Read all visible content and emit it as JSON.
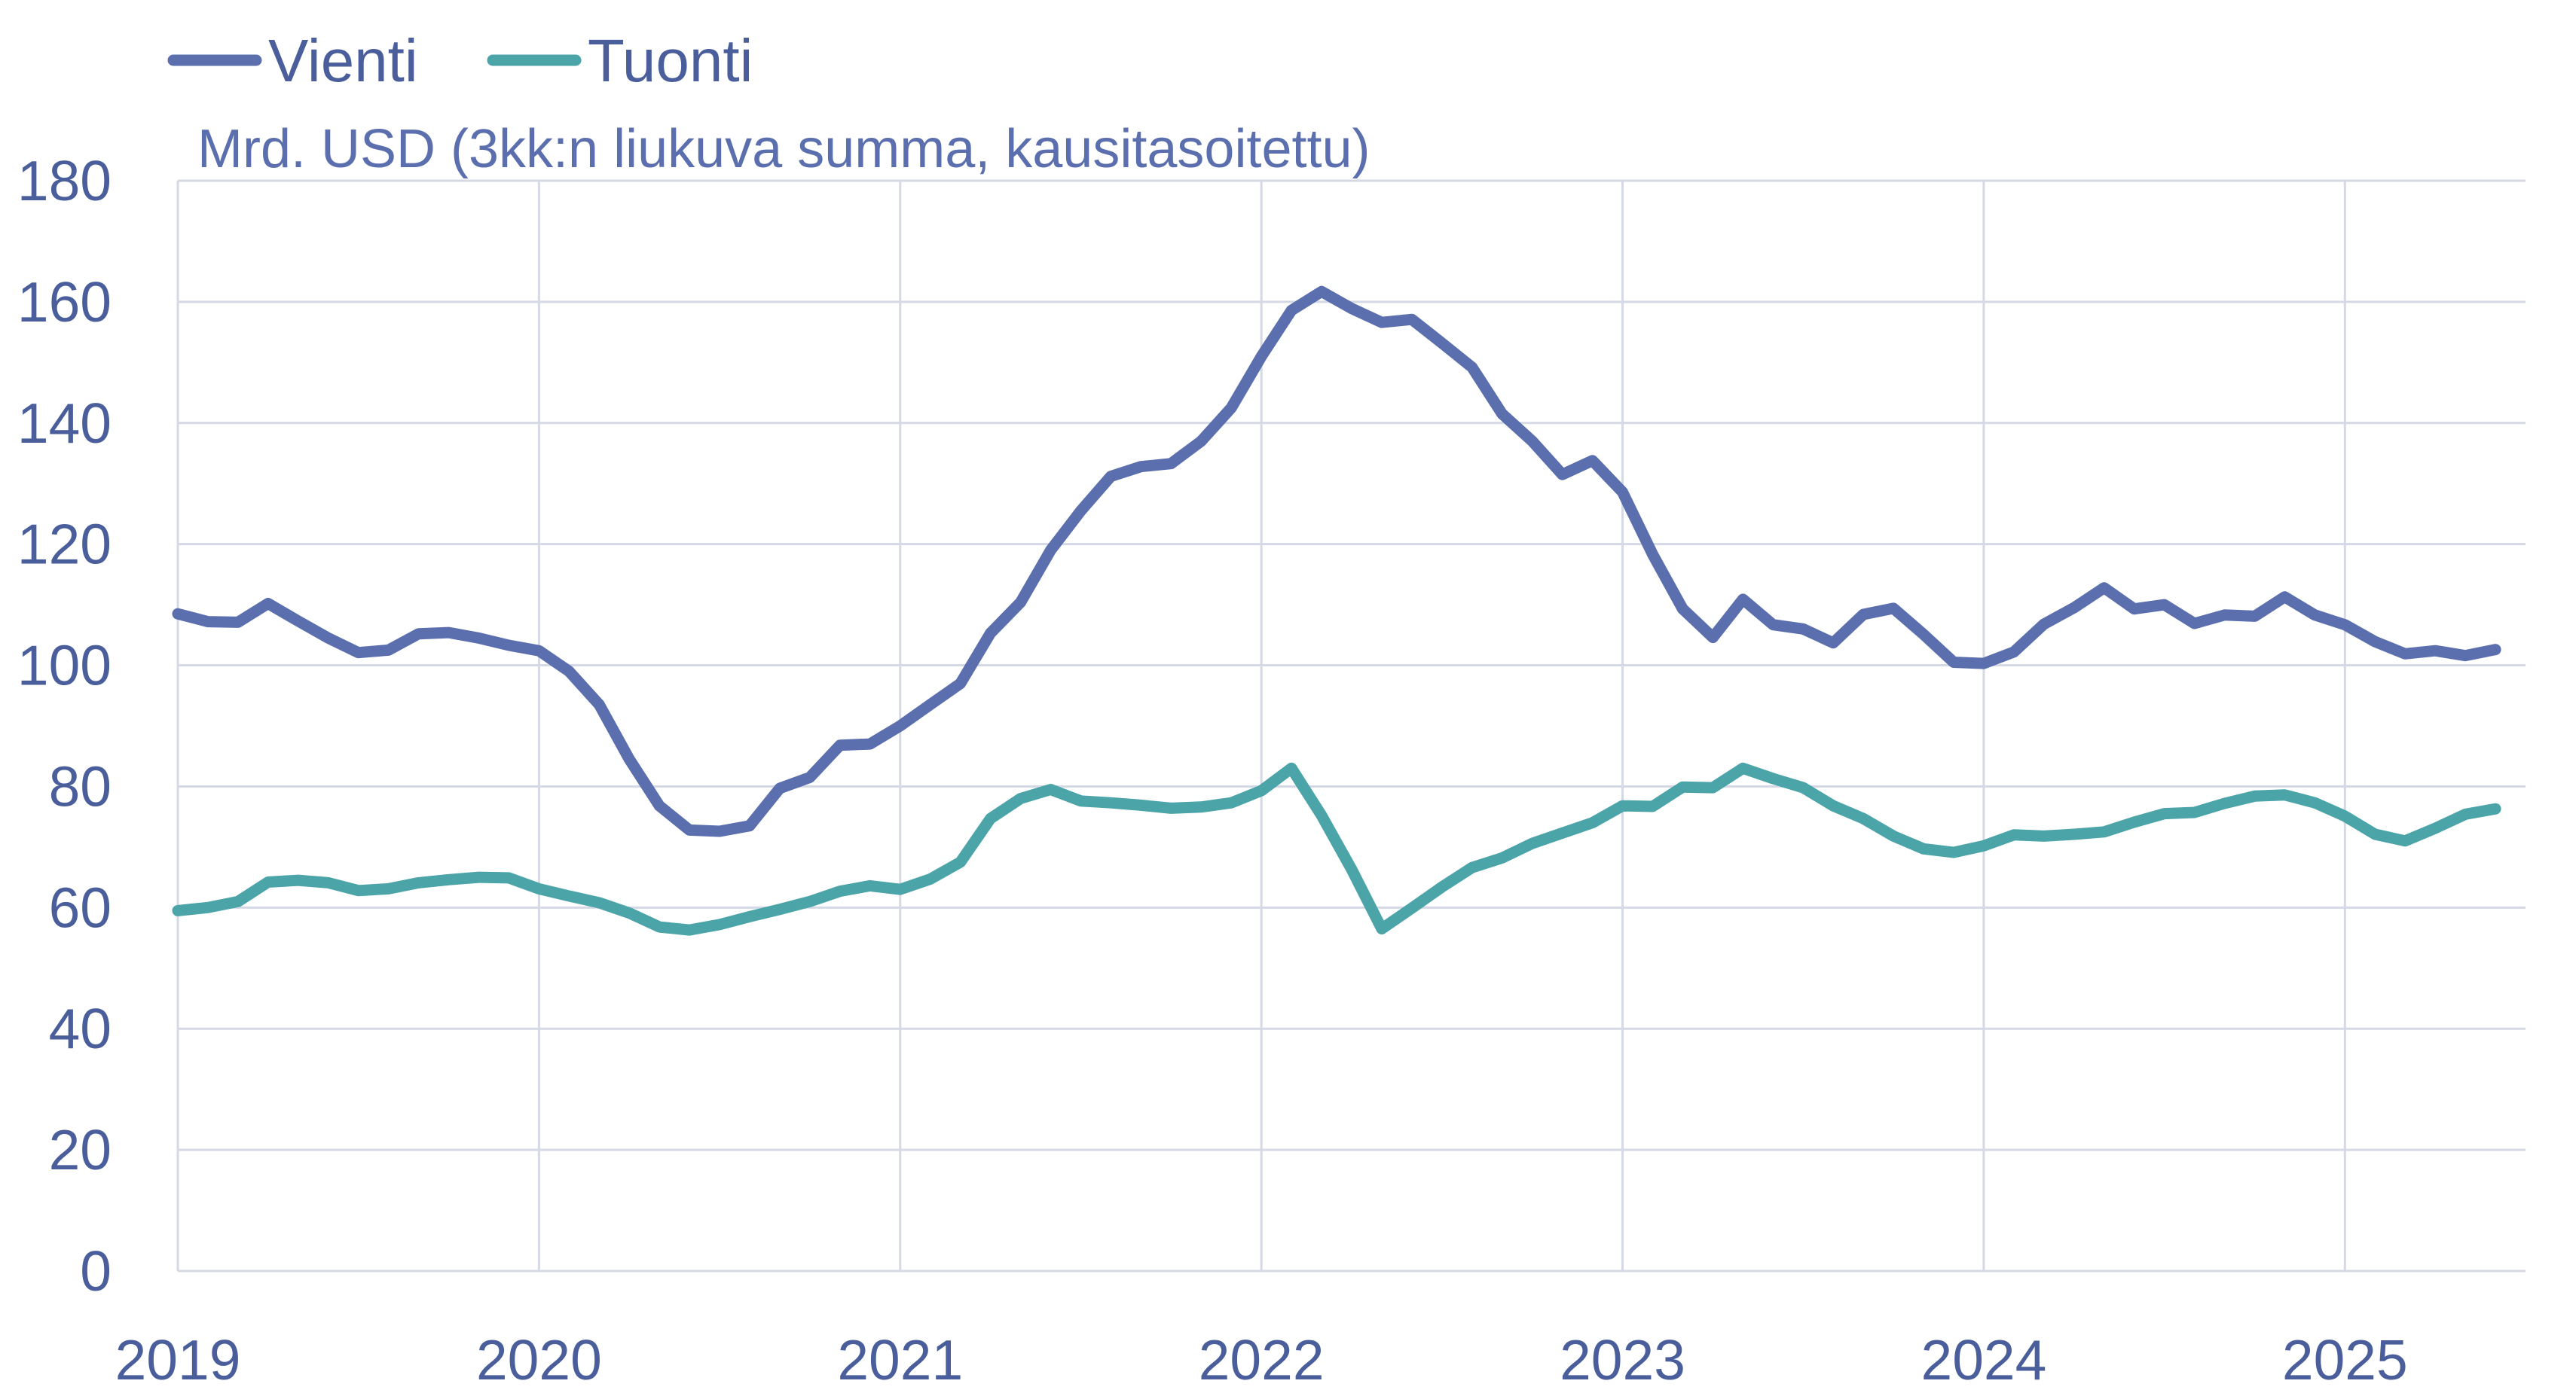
{
  "chart_data": {
    "type": "line",
    "title": "",
    "unit_label": "Mrd. USD (3kk:n liukuva summa, kausitasoitettu)",
    "xlabel": "",
    "ylabel": "",
    "ylim": [
      0,
      180
    ],
    "yticks": [
      0,
      20,
      40,
      60,
      80,
      100,
      120,
      140,
      160,
      180
    ],
    "xlim": [
      "2019-01",
      "2025-07"
    ],
    "xticks": [
      "2019",
      "2020",
      "2021",
      "2022",
      "2023",
      "2024",
      "2025"
    ],
    "grid": true,
    "legend_position": "top-left",
    "x": [
      "2019-01",
      "2019-02",
      "2019-03",
      "2019-04",
      "2019-05",
      "2019-06",
      "2019-07",
      "2019-08",
      "2019-09",
      "2019-10",
      "2019-11",
      "2019-12",
      "2020-01",
      "2020-02",
      "2020-03",
      "2020-04",
      "2020-05",
      "2020-06",
      "2020-07",
      "2020-08",
      "2020-09",
      "2020-10",
      "2020-11",
      "2020-12",
      "2021-01",
      "2021-02",
      "2021-03",
      "2021-04",
      "2021-05",
      "2021-06",
      "2021-07",
      "2021-08",
      "2021-09",
      "2021-10",
      "2021-11",
      "2021-12",
      "2022-01",
      "2022-02",
      "2022-03",
      "2022-04",
      "2022-05",
      "2022-06",
      "2022-07",
      "2022-08",
      "2022-09",
      "2022-10",
      "2022-11",
      "2022-12",
      "2023-01",
      "2023-02",
      "2023-03",
      "2023-04",
      "2023-05",
      "2023-06",
      "2023-07",
      "2023-08",
      "2023-09",
      "2023-10",
      "2023-11",
      "2023-12",
      "2024-01",
      "2024-02",
      "2024-03",
      "2024-04",
      "2024-05",
      "2024-06",
      "2024-07",
      "2024-08",
      "2024-09",
      "2024-10",
      "2024-11",
      "2024-12",
      "2025-01",
      "2025-02",
      "2025-03",
      "2025-04",
      "2025-05",
      "2025-06"
    ],
    "series": [
      {
        "name": "Vienti",
        "color": "#5b6fae",
        "values": [
          108.5,
          107.2,
          107.1,
          110.2,
          107.3,
          104.5,
          102.1,
          102.5,
          105.2,
          105.4,
          104.5,
          103.3,
          102.4,
          99.0,
          93.5,
          84.5,
          76.8,
          72.8,
          72.6,
          73.5,
          79.7,
          81.5,
          86.8,
          87.0,
          90.0,
          93.5,
          97.0,
          105.3,
          110.4,
          119.0,
          125.5,
          131.2,
          132.8,
          133.3,
          137.0,
          142.5,
          151.0,
          158.6,
          161.7,
          158.9,
          156.6,
          157.1,
          153.2,
          149.2,
          141.5,
          137.0,
          131.5,
          133.8,
          128.6,
          118.3,
          109.3,
          104.6,
          110.9,
          106.7,
          106.0,
          103.7,
          108.4,
          109.4,
          105.1,
          100.5,
          100.3,
          102.2,
          106.8,
          109.5,
          112.8,
          109.3,
          110.0,
          106.9,
          108.3,
          108.1,
          111.3,
          108.3,
          106.7,
          103.9,
          101.9,
          102.4,
          101.6,
          102.6
        ]
      },
      {
        "name": "Tuonti",
        "color": "#4ba4a8",
        "values": [
          59.5,
          60.0,
          61.0,
          64.2,
          64.5,
          64.1,
          62.8,
          63.1,
          64.1,
          64.6,
          65.0,
          64.9,
          63.1,
          61.9,
          60.8,
          59.1,
          56.8,
          56.3,
          57.2,
          58.5,
          59.7,
          61.0,
          62.7,
          63.6,
          63.0,
          64.7,
          67.5,
          74.7,
          78.0,
          79.5,
          77.6,
          77.3,
          76.9,
          76.4,
          76.6,
          77.3,
          79.3,
          83.0,
          75.2,
          66.3,
          56.5,
          59.9,
          63.4,
          66.6,
          68.2,
          70.6,
          72.3,
          74.0,
          76.8,
          76.7,
          79.9,
          79.8,
          83.0,
          81.3,
          79.8,
          76.8,
          74.7,
          71.8,
          69.7,
          69.1,
          70.2,
          72.0,
          71.8,
          72.1,
          72.5,
          74.1,
          75.5,
          75.7,
          77.2,
          78.4,
          78.6,
          77.3,
          75.1,
          72.1,
          71.0,
          73.1,
          75.4,
          76.3
        ]
      }
    ]
  }
}
